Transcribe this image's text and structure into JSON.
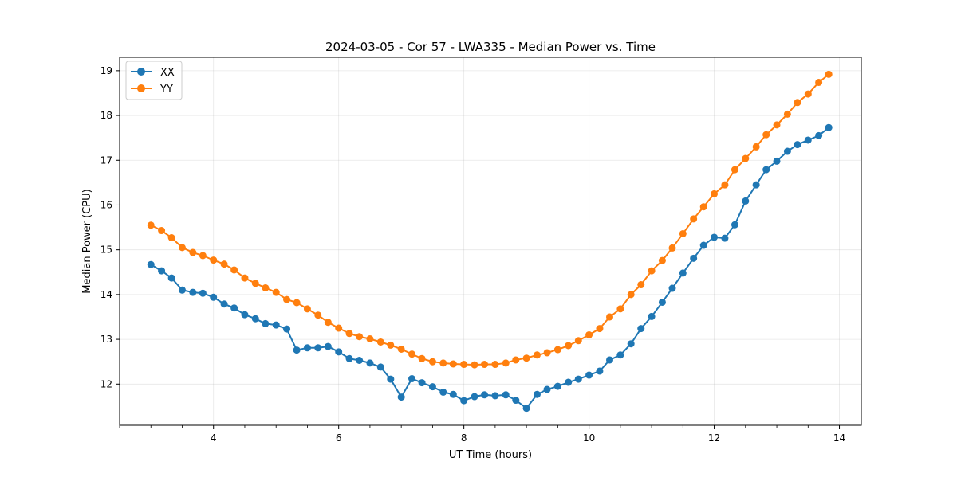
{
  "chart_data": {
    "type": "line",
    "title": "2024-03-05 - Cor 57 - LWA335 - Median Power vs. Time",
    "xlabel": "UT Time (hours)",
    "ylabel": "Median Power (CPU)",
    "xlim": [
      2.5,
      14.35
    ],
    "ylim": [
      11.08,
      19.3
    ],
    "xticks": [
      4,
      6,
      8,
      10,
      12,
      14
    ],
    "yticks": [
      12,
      13,
      14,
      15,
      16,
      17,
      18,
      19
    ],
    "grid": true,
    "legend_position": "upper-left",
    "x": [
      3.0,
      3.17,
      3.33,
      3.5,
      3.67,
      3.83,
      4.0,
      4.17,
      4.33,
      4.5,
      4.67,
      4.83,
      5.0,
      5.17,
      5.33,
      5.5,
      5.67,
      5.83,
      6.0,
      6.17,
      6.33,
      6.5,
      6.67,
      6.83,
      7.0,
      7.17,
      7.33,
      7.5,
      7.67,
      7.83,
      8.0,
      8.17,
      8.33,
      8.5,
      8.67,
      8.83,
      9.0,
      9.17,
      9.33,
      9.5,
      9.67,
      9.83,
      10.0,
      10.17,
      10.33,
      10.5,
      10.67,
      10.83,
      11.0,
      11.17,
      11.33,
      11.5,
      11.67,
      11.83,
      12.0,
      12.17,
      12.33,
      12.5,
      12.67,
      12.83,
      13.0,
      13.17,
      13.33,
      13.5,
      13.67,
      13.83
    ],
    "series": [
      {
        "name": "XX",
        "color": "#1f77b4",
        "values": [
          14.67,
          14.53,
          14.37,
          14.1,
          14.05,
          14.03,
          13.94,
          13.79,
          13.7,
          13.55,
          13.46,
          13.35,
          13.32,
          13.23,
          12.76,
          12.81,
          12.81,
          12.84,
          12.72,
          12.57,
          12.53,
          12.47,
          12.38,
          12.11,
          11.71,
          12.12,
          12.03,
          11.94,
          11.82,
          11.77,
          11.63,
          11.72,
          11.76,
          11.74,
          11.76,
          11.64,
          11.46,
          11.77,
          11.88,
          11.95,
          12.04,
          12.11,
          12.2,
          12.29,
          12.54,
          12.65,
          12.9,
          13.24,
          13.51,
          13.83,
          14.14,
          14.48,
          14.81,
          15.1,
          15.28,
          15.26,
          15.56,
          16.09,
          16.45,
          16.79,
          16.98,
          17.2,
          17.35,
          17.45,
          17.55,
          17.73
        ]
      },
      {
        "name": "YY",
        "color": "#ff7f0e",
        "values": [
          15.55,
          15.43,
          15.27,
          15.05,
          14.94,
          14.87,
          14.77,
          14.68,
          14.55,
          14.37,
          14.25,
          14.15,
          14.05,
          13.89,
          13.82,
          13.68,
          13.54,
          13.38,
          13.25,
          13.13,
          13.06,
          13.01,
          12.94,
          12.87,
          12.78,
          12.67,
          12.57,
          12.5,
          12.47,
          12.45,
          12.44,
          12.43,
          12.44,
          12.44,
          12.47,
          12.54,
          12.58,
          12.65,
          12.7,
          12.77,
          12.86,
          12.97,
          13.1,
          13.24,
          13.5,
          13.68,
          14.0,
          14.22,
          14.53,
          14.76,
          15.04,
          15.36,
          15.69,
          15.96,
          16.25,
          16.45,
          16.79,
          17.04,
          17.3,
          17.57,
          17.79,
          18.03,
          18.29,
          18.48,
          18.74,
          18.92
        ]
      }
    ]
  }
}
